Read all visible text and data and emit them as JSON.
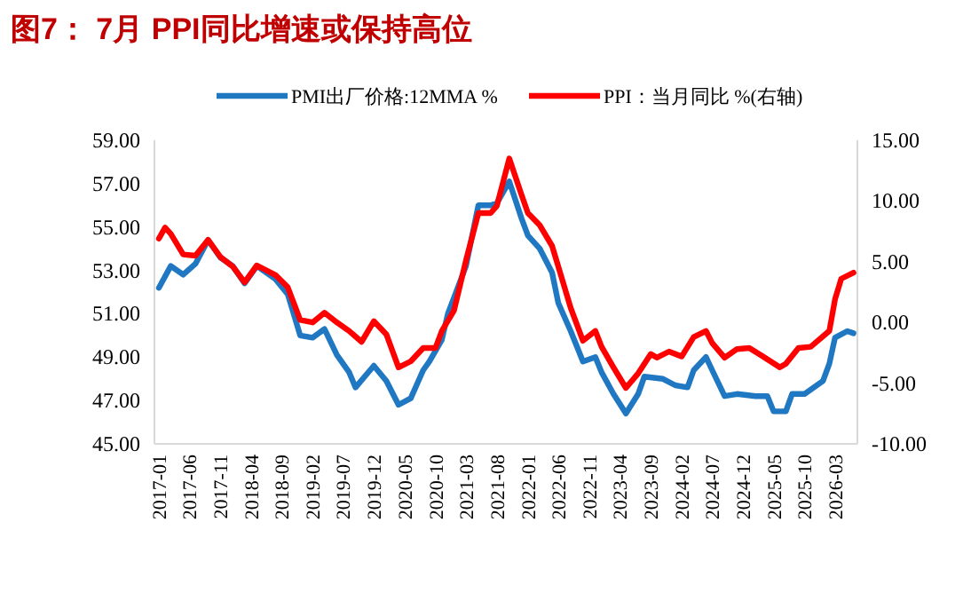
{
  "chart_data": {
    "type": "line",
    "title": "图7：  7月 PPI同比增速或保持高位",
    "legend": "top",
    "xlim": [
      "2016-12-10",
      "2026-06-20"
    ],
    "xticks": [
      "2017-01",
      "2017-06",
      "2017-11",
      "2018-04",
      "2018-09",
      "2019-02",
      "2019-07",
      "2019-12",
      "2020-05",
      "2020-10",
      "2021-03",
      "2021-08",
      "2022-01",
      "2022-06",
      "2022-11",
      "2023-04",
      "2023-09",
      "2024-02",
      "2024-07",
      "2024-12",
      "2025-05",
      "2025-10",
      "2026-03"
    ],
    "ylim": [
      45,
      59
    ],
    "yticks": [
      {
        "value": 45,
        "label": "45.00"
      },
      {
        "value": 47,
        "label": "47.00"
      },
      {
        "value": 49,
        "label": "49.00"
      },
      {
        "value": 51,
        "label": "51.00"
      },
      {
        "value": 53,
        "label": "53.00"
      },
      {
        "value": 55,
        "label": "55.00"
      },
      {
        "value": 57,
        "label": "57.00"
      },
      {
        "value": 59,
        "label": "59.00"
      }
    ],
    "y2lim": [
      -10,
      15
    ],
    "y2ticks": [
      {
        "value": -10,
        "label": "-10.00"
      },
      {
        "value": -5,
        "label": "-5.00"
      },
      {
        "value": 0,
        "label": "0.00"
      },
      {
        "value": 5,
        "label": "5.00"
      },
      {
        "value": 10,
        "label": "10.00"
      },
      {
        "value": 15,
        "label": "15.00"
      }
    ],
    "series": [
      {
        "name": "PMI出厂价格:12MMA %",
        "color": "#1f78c1",
        "x": [
          "2017-01",
          "2017-03",
          "2017-05",
          "2017-07",
          "2017-09",
          "2017-11",
          "2018-01",
          "2018-03",
          "2018-05",
          "2018-08",
          "2018-10",
          "2018-12",
          "2019-02",
          "2019-04",
          "2019-06",
          "2019-08",
          "2019-09",
          "2019-12",
          "2020-02",
          "2020-04",
          "2020-06",
          "2020-08",
          "2020-09",
          "2020-11",
          "2020-12",
          "2021-03",
          "2021-05",
          "2021-07",
          "2021-08",
          "2021-10",
          "2021-12",
          "2022-01",
          "2022-03",
          "2022-05",
          "2022-06",
          "2022-08",
          "2022-10",
          "2022-12",
          "2023-01",
          "2023-03",
          "2023-05",
          "2023-07",
          "2023-08",
          "2023-11",
          "2024-01",
          "2024-03",
          "2024-04",
          "2024-06",
          "2024-07",
          "2024-09",
          "2024-11",
          "2025-02",
          "2025-04",
          "2025-05",
          "2025-07",
          "2025-08",
          "2025-10",
          "2026-01",
          "2026-02",
          "2026-03",
          "2026-05",
          "2026-06"
        ],
        "values": [
          52.2,
          53.2,
          52.8,
          53.3,
          54.4,
          53.6,
          53.2,
          52.4,
          53.2,
          52.6,
          51.9,
          50.0,
          49.9,
          50.3,
          49.1,
          48.3,
          47.6,
          48.6,
          47.9,
          46.8,
          47.1,
          48.4,
          48.8,
          49.8,
          51.0,
          53.2,
          56.0,
          56.0,
          56.1,
          57.1,
          55.4,
          54.6,
          54.0,
          52.9,
          51.5,
          50.2,
          48.8,
          49.0,
          48.3,
          47.3,
          46.4,
          47.3,
          48.1,
          48.0,
          47.7,
          47.6,
          48.4,
          49.0,
          48.4,
          47.2,
          47.3,
          47.2,
          47.2,
          46.5,
          46.5,
          47.3,
          47.3,
          47.9,
          48.7,
          49.9,
          50.2,
          50.1
        ]
      },
      {
        "name": "PPI：当月同比 %(右轴)",
        "color": "#ff0000",
        "axis": "y2",
        "x": [
          "2017-01",
          "2017-02",
          "2017-03",
          "2017-05",
          "2017-07",
          "2017-09",
          "2017-11",
          "2018-01",
          "2018-03",
          "2018-05",
          "2018-08",
          "2018-10",
          "2018-12",
          "2019-02",
          "2019-04",
          "2019-06",
          "2019-08",
          "2019-10",
          "2019-12",
          "2020-02",
          "2020-04",
          "2020-06",
          "2020-08",
          "2020-10",
          "2020-11",
          "2021-01",
          "2021-03",
          "2021-05",
          "2021-07",
          "2021-08",
          "2021-10",
          "2021-12",
          "2022-01",
          "2022-03",
          "2022-05",
          "2022-06",
          "2022-08",
          "2022-10",
          "2022-12",
          "2023-01",
          "2023-03",
          "2023-05",
          "2023-07",
          "2023-09",
          "2023-10",
          "2023-12",
          "2024-02",
          "2024-04",
          "2024-06",
          "2024-07",
          "2024-09",
          "2024-11",
          "2025-01",
          "2025-03",
          "2025-06",
          "2025-07",
          "2025-09",
          "2025-11",
          "2026-02",
          "2026-03",
          "2026-04",
          "2026-06"
        ],
        "values": [
          6.9,
          7.8,
          7.3,
          5.6,
          5.5,
          6.8,
          5.4,
          4.6,
          3.3,
          4.7,
          3.9,
          2.9,
          0.2,
          0.0,
          0.8,
          0.0,
          -0.7,
          -1.6,
          0.1,
          -1.0,
          -3.7,
          -3.2,
          -2.1,
          -2.1,
          -0.7,
          1.0,
          5.1,
          9.0,
          9.0,
          9.6,
          13.5,
          10.5,
          9.0,
          8.0,
          6.3,
          4.6,
          1.2,
          -1.5,
          -0.7,
          -2.0,
          -3.7,
          -5.4,
          -4.2,
          -2.6,
          -2.9,
          -2.4,
          -2.8,
          -1.2,
          -0.7,
          -1.7,
          -2.9,
          -2.2,
          -2.1,
          -2.7,
          -3.7,
          -3.4,
          -2.1,
          -2.0,
          -0.7,
          1.9,
          3.6,
          4.1
        ]
      }
    ]
  }
}
